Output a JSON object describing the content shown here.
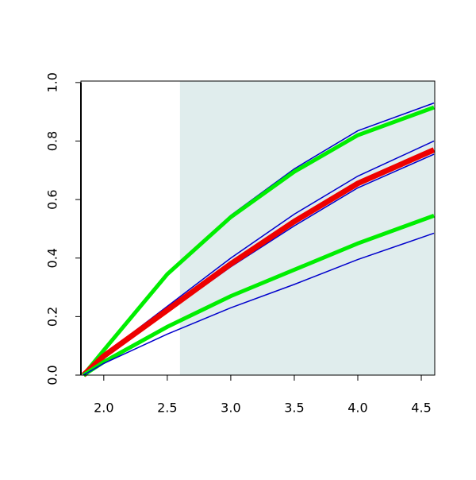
{
  "chart_data": {
    "type": "line",
    "x": [
      1.84,
      2.0,
      2.5,
      3.0,
      3.5,
      4.0,
      4.6
    ],
    "series": [
      {
        "color": "#0000cc",
        "width": 1.5,
        "values": [
          0,
          0.09,
          0.345,
          0.546,
          0.705,
          0.835,
          0.93
        ]
      },
      {
        "color": "#00ee00",
        "width": 5,
        "values": [
          0,
          0.085,
          0.345,
          0.54,
          0.695,
          0.82,
          0.915
        ]
      },
      {
        "color": "#0000cc",
        "width": 1.5,
        "values": [
          0,
          0.07,
          0.235,
          0.4,
          0.55,
          0.68,
          0.8
        ]
      },
      {
        "color": "#0000cc",
        "width": 1.5,
        "values": [
          0,
          0.06,
          0.215,
          0.37,
          0.51,
          0.64,
          0.755
        ]
      },
      {
        "color": "#ee0000",
        "width": 7,
        "values": [
          0,
          0.065,
          0.222,
          0.38,
          0.525,
          0.655,
          0.77
        ]
      },
      {
        "color": "#00ee00",
        "width": 5,
        "values": [
          0,
          0.045,
          0.165,
          0.27,
          0.36,
          0.45,
          0.545
        ]
      },
      {
        "color": "#0000cc",
        "width": 1.5,
        "values": [
          0,
          0.04,
          0.14,
          0.23,
          0.31,
          0.395,
          0.485
        ]
      }
    ],
    "xlim": [
      1.82,
      4.606
    ],
    "ylim": [
      0,
      1.005
    ],
    "xticks": [
      {
        "value": 2,
        "label": "2.0"
      },
      {
        "value": 2.5,
        "label": "2.5"
      },
      {
        "value": 3,
        "label": "3.0"
      },
      {
        "value": 3.5,
        "label": "3.5"
      },
      {
        "value": 4,
        "label": "4.0"
      },
      {
        "value": 4.5,
        "label": "4.5"
      }
    ],
    "yticks": [
      {
        "value": 0,
        "label": "0.0"
      },
      {
        "value": 0.2,
        "label": "0.2"
      },
      {
        "value": 0.4,
        "label": "0.4"
      },
      {
        "value": 0.6,
        "label": "0.6"
      },
      {
        "value": 0.8,
        "label": "0.8"
      },
      {
        "value": 1,
        "label": "1.0"
      }
    ],
    "shade_from": 2.6,
    "shade_color": "#e0eded"
  }
}
